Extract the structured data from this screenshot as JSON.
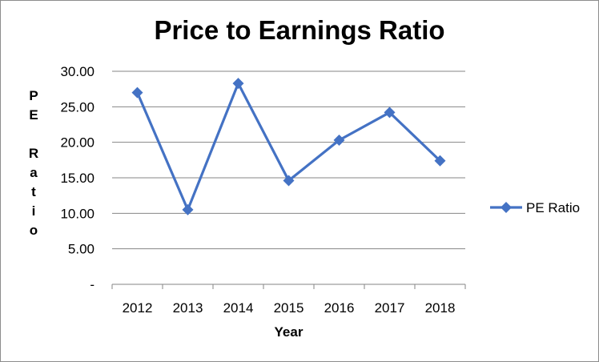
{
  "chart_data": {
    "type": "line",
    "title": "Price to Earnings Ratio",
    "xlabel": "Year",
    "ylabel": "PE Ratio",
    "categories": [
      "2012",
      "2013",
      "2014",
      "2015",
      "2016",
      "2017",
      "2018"
    ],
    "series": [
      {
        "name": "PE Ratio",
        "values": [
          27.0,
          10.5,
          28.3,
          14.6,
          20.3,
          24.2,
          17.4
        ],
        "color": "#4472c4"
      }
    ],
    "ylim": [
      0,
      30
    ],
    "yticks": [
      "-",
      "5.00",
      "10.00",
      "15.00",
      "20.00",
      "25.00",
      "30.00"
    ],
    "grid": true,
    "legend_position": "right",
    "marker": "diamond"
  }
}
